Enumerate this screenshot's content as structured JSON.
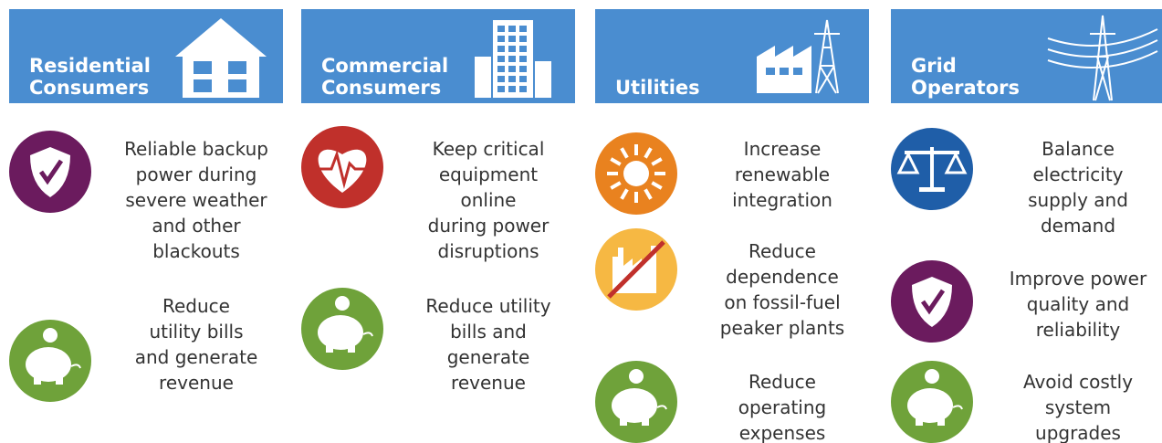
{
  "columns": [
    {
      "title": [
        "Residential",
        "Consumers"
      ],
      "items": [
        {
          "lines": [
            "Reliable backup",
            "power during",
            "severe weather",
            "and other",
            "blackouts"
          ]
        },
        {
          "lines": [
            "Reduce",
            "utility bills",
            "and generate",
            "revenue"
          ]
        }
      ]
    },
    {
      "title": [
        "Commercial",
        "Consumers"
      ],
      "items": [
        {
          "lines": [
            "Keep critical",
            "equipment",
            "online",
            "during power",
            "disruptions"
          ]
        },
        {
          "lines": [
            "Reduce utility",
            "bills and",
            "generate",
            "revenue"
          ]
        }
      ]
    },
    {
      "title": [
        "Utilities"
      ],
      "items": [
        {
          "lines": [
            "Increase",
            "renewable",
            "integration"
          ]
        },
        {
          "lines": [
            "Reduce",
            "dependence",
            "on fossil-fuel",
            "peaker plants"
          ]
        },
        {
          "lines": [
            "Reduce",
            "operating",
            "expenses"
          ]
        }
      ]
    },
    {
      "title": [
        "Grid",
        "Operators"
      ],
      "items": [
        {
          "lines": [
            "Balance",
            "electricity",
            "supply and",
            "demand"
          ]
        },
        {
          "lines": [
            "Improve power",
            "quality and",
            "reliability"
          ]
        },
        {
          "lines": [
            "Avoid costly",
            "system",
            "upgrades"
          ]
        }
      ]
    }
  ]
}
